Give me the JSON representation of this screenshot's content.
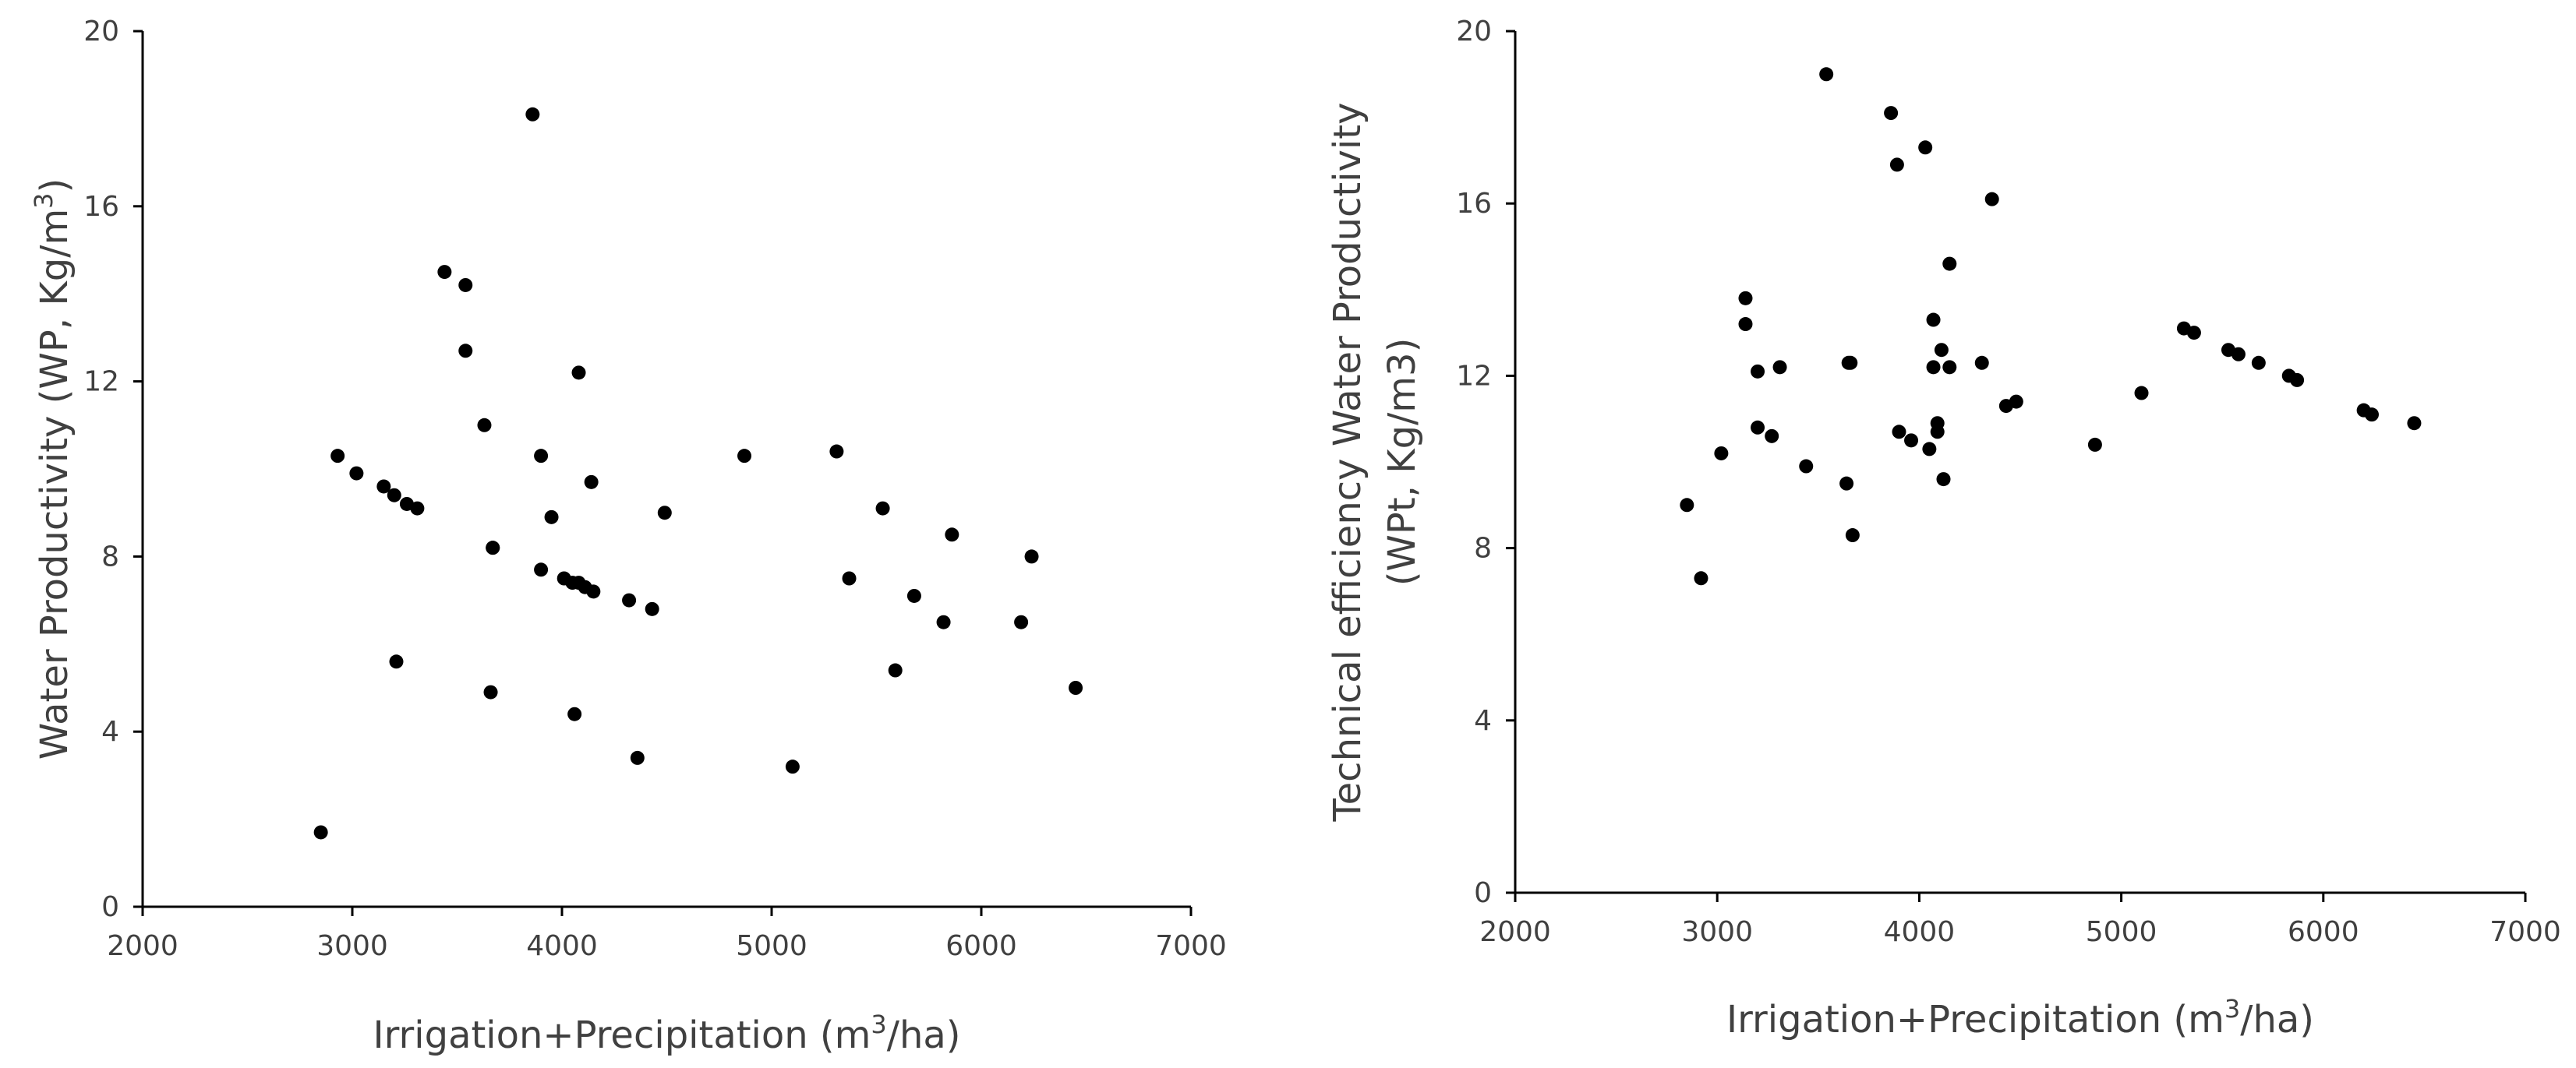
{
  "chart_data": [
    {
      "type": "scatter",
      "title": "",
      "xlabel_main": "Irrigation+Precipitation (m",
      "xlabel_sup": "3",
      "xlabel_end": "/ha)",
      "ylabel_main": "Water Productivity (WP, Kg/m",
      "ylabel_sup": "3",
      "ylabel_end": ")",
      "xlim": [
        2000,
        7000
      ],
      "ylim": [
        0,
        20
      ],
      "xticks": [
        2000,
        3000,
        4000,
        5000,
        6000,
        7000
      ],
      "yticks": [
        0,
        4,
        8,
        12,
        16,
        20
      ],
      "series": [
        {
          "name": "WP",
          "color": "#000000",
          "points": [
            [
              2850,
              1.7
            ],
            [
              2930,
              10.3
            ],
            [
              3020,
              9.9
            ],
            [
              3150,
              9.6
            ],
            [
              3200,
              9.4
            ],
            [
              3260,
              9.2
            ],
            [
              3310,
              9.1
            ],
            [
              3210,
              5.6
            ],
            [
              3440,
              14.5
            ],
            [
              3540,
              14.2
            ],
            [
              3540,
              12.7
            ],
            [
              3630,
              11.0
            ],
            [
              3670,
              8.2
            ],
            [
              3670,
              8.2
            ],
            [
              3660,
              4.9
            ],
            [
              3860,
              18.1
            ],
            [
              3900,
              10.3
            ],
            [
              3900,
              7.7
            ],
            [
              3950,
              8.9
            ],
            [
              4010,
              7.5
            ],
            [
              4050,
              7.4
            ],
            [
              4080,
              7.4
            ],
            [
              4110,
              7.3
            ],
            [
              4150,
              7.2
            ],
            [
              4080,
              12.2
            ],
            [
              4140,
              9.7
            ],
            [
              4060,
              4.4
            ],
            [
              4320,
              7.0
            ],
            [
              4430,
              6.8
            ],
            [
              4490,
              9.0
            ],
            [
              4360,
              3.4
            ],
            [
              4870,
              10.3
            ],
            [
              5100,
              3.2
            ],
            [
              5310,
              10.4
            ],
            [
              5370,
              7.5
            ],
            [
              5530,
              9.1
            ],
            [
              5590,
              5.4
            ],
            [
              5680,
              7.1
            ],
            [
              5820,
              6.5
            ],
            [
              5860,
              8.5
            ],
            [
              6190,
              6.5
            ],
            [
              6240,
              8.0
            ],
            [
              6450,
              5.0
            ]
          ]
        }
      ]
    },
    {
      "type": "scatter",
      "title": "",
      "xlabel_main": "Irrigation+Precipitation (m",
      "xlabel_sup": "3",
      "xlabel_end": "/ha)",
      "ylabel_line1": "Technical efficiency Water Productivity",
      "ylabel_line2": "(WPt, Kg/m3)",
      "xlim": [
        2000,
        7000
      ],
      "ylim": [
        0,
        20
      ],
      "xticks": [
        2000,
        3000,
        4000,
        5000,
        6000,
        7000
      ],
      "yticks": [
        0,
        4,
        8,
        12,
        16,
        20
      ],
      "series": [
        {
          "name": "WPt",
          "color": "#000000",
          "points": [
            [
              2850,
              9.0
            ],
            [
              2920,
              7.3
            ],
            [
              3020,
              10.2
            ],
            [
              3140,
              13.8
            ],
            [
              3140,
              13.2
            ],
            [
              3200,
              12.1
            ],
            [
              3200,
              10.8
            ],
            [
              3270,
              10.6
            ],
            [
              3310,
              12.2
            ],
            [
              3440,
              9.9
            ],
            [
              3540,
              19.0
            ],
            [
              3640,
              9.5
            ],
            [
              3650,
              12.3
            ],
            [
              3660,
              12.3
            ],
            [
              3670,
              8.3
            ],
            [
              3860,
              18.1
            ],
            [
              3890,
              16.9
            ],
            [
              3900,
              10.7
            ],
            [
              3960,
              10.5
            ],
            [
              4030,
              17.3
            ],
            [
              4050,
              10.3
            ],
            [
              4070,
              13.3
            ],
            [
              4070,
              12.2
            ],
            [
              4090,
              10.9
            ],
            [
              4090,
              10.7
            ],
            [
              4110,
              12.6
            ],
            [
              4120,
              9.6
            ],
            [
              4150,
              14.6
            ],
            [
              4150,
              12.2
            ],
            [
              4310,
              12.3
            ],
            [
              4360,
              16.1
            ],
            [
              4430,
              11.3
            ],
            [
              4480,
              11.4
            ],
            [
              4870,
              10.4
            ],
            [
              5100,
              11.6
            ],
            [
              5310,
              13.1
            ],
            [
              5360,
              13.0
            ],
            [
              5530,
              12.6
            ],
            [
              5580,
              12.5
            ],
            [
              5680,
              12.3
            ],
            [
              5830,
              12.0
            ],
            [
              5870,
              11.9
            ],
            [
              6200,
              11.2
            ],
            [
              6240,
              11.1
            ],
            [
              6450,
              10.9
            ]
          ]
        }
      ]
    }
  ]
}
